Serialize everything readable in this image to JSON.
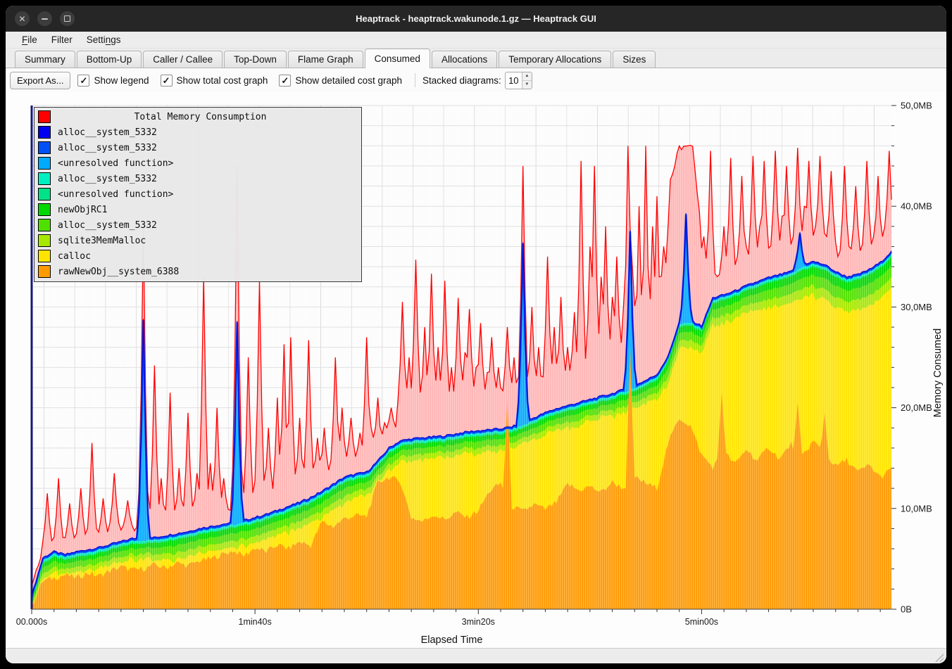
{
  "window": {
    "title": "Heaptrack - heaptrack.wakunode.1.gz — Heaptrack GUI"
  },
  "menubar": {
    "items": [
      {
        "label": "File",
        "mnemonic": "F"
      },
      {
        "label": "Filter",
        "mnemonic": ""
      },
      {
        "label": "Settings",
        "mnemonic": "n"
      }
    ]
  },
  "tabs": {
    "items": [
      "Summary",
      "Bottom-Up",
      "Caller / Callee",
      "Top-Down",
      "Flame Graph",
      "Consumed",
      "Allocations",
      "Temporary Allocations",
      "Sizes"
    ],
    "active": "Consumed"
  },
  "toolbar": {
    "export_label": "Export As...",
    "checkboxes": [
      {
        "label": "Show legend",
        "checked": true
      },
      {
        "label": "Show total cost graph",
        "checked": true
      },
      {
        "label": "Show detailed cost graph",
        "checked": true
      }
    ],
    "stacked_label": "Stacked diagrams:",
    "stacked_value": "10",
    "check_glyph": "✓",
    "spin_up_glyph": "▲",
    "spin_down_glyph": "▼"
  },
  "chart_data": {
    "type": "area",
    "xlabel": "Elapsed Time",
    "ylabel": "Memory Consumed",
    "t_max": 385,
    "y_max": 50,
    "x_ticks": [
      {
        "t": 0,
        "label": "00.000s"
      },
      {
        "t": 100,
        "label": "1min40s"
      },
      {
        "t": 200,
        "label": "3min20s"
      },
      {
        "t": 300,
        "label": "5min00s"
      }
    ],
    "y_ticks": [
      {
        "mb": 0,
        "label": "0B"
      },
      {
        "mb": 10,
        "label": "10,0MB"
      },
      {
        "mb": 20,
        "label": "20,0MB"
      },
      {
        "mb": 30,
        "label": "30,0MB"
      },
      {
        "mb": 40,
        "label": "40,0MB"
      },
      {
        "mb": 50,
        "label": "50,0MB"
      }
    ],
    "legend": [
      {
        "label": "Total Memory Consumption",
        "color": "#ff0000"
      },
      {
        "label": "alloc__system_5332",
        "color": "#0000f0"
      },
      {
        "label": "alloc__system_5332",
        "color": "#0051f5"
      },
      {
        "label": "<unresolved function>",
        "color": "#00aaff"
      },
      {
        "label": "alloc__system_5332",
        "color": "#00efc1"
      },
      {
        "label": "<unresolved function>",
        "color": "#00e287"
      },
      {
        "label": "newObjRC1",
        "color": "#00d900"
      },
      {
        "label": "alloc__system_5332",
        "color": "#50e000"
      },
      {
        "label": "sqlite3MemMalloc",
        "color": "#a7e800"
      },
      {
        "label": "calloc",
        "color": "#ffe400"
      },
      {
        "label": "rawNewObj__system_6388",
        "color": "#ff9a02"
      }
    ],
    "colors": {
      "red_fill": "#ffb5b5",
      "blue_line": "#0b46f2",
      "dark_blue_line": "#0000d6",
      "grid": "#dcdcdc",
      "axis_spine_left": "#16167c",
      "axis_spine_bottom": "#444444",
      "tick": "#333333",
      "plot_bg": "#fcfcfc"
    },
    "sample_step_s": 5,
    "series": {
      "stack_top_blue": [
        1.2,
        5,
        5.6,
        5.3,
        5.6,
        5.8,
        6,
        6.3,
        6.6,
        6.9,
        7,
        7,
        7.2,
        7.4,
        7.6,
        7.9,
        8.1,
        8.3,
        8.5,
        8.7,
        9,
        9.3,
        9.7,
        10.1,
        10.5,
        11,
        11.6,
        12.3,
        13,
        13.3,
        13.5,
        14.6,
        15.9,
        16.6,
        16.8,
        16.9,
        17,
        17.1,
        17.3,
        17.5,
        17.6,
        17.7,
        17.8,
        18,
        18.4,
        18.9,
        19.4,
        19.8,
        20.1,
        20.4,
        20.7,
        21,
        21.3,
        21.7,
        22.1,
        22.6,
        23.2,
        25,
        28.4,
        28.6,
        28,
        30.8,
        31.1,
        31.5,
        32,
        32.4,
        32.8,
        33.1,
        33.4,
        34.1,
        34.4,
        34.1,
        33.4,
        32.9,
        33.1,
        33.6,
        34.3,
        35.4
      ],
      "orange": [
        0.3,
        2.8,
        3.1,
        3.4,
        3.1,
        3.6,
        3.3,
        3.8,
        4.2,
        3.9,
        4,
        4.4,
        4.1,
        4.6,
        4.3,
        4.8,
        5,
        5.4,
        5.8,
        5.3,
        6.1,
        5.7,
        6.4,
        6,
        6.7,
        6.3,
        8.7,
        8.2,
        9,
        9.3,
        9.2,
        12.6,
        13.1,
        12.7,
        9.1,
        8.7,
        9.4,
        8.9,
        9.6,
        9.1,
        9.8,
        11.7,
        12.5,
        10.2,
        9.7,
        10.4,
        9.9,
        10.6,
        12.4,
        11.8,
        12.2,
        11.6,
        12.6,
        12,
        13.1,
        12.5,
        12,
        16.5,
        19,
        18.2,
        15.3,
        14.1,
        15.6,
        14.4,
        15.9,
        14.7,
        16.1,
        14.9,
        16.4,
        15.2,
        16.7,
        15.5,
        14.2,
        14.8,
        13.6,
        14.3,
        13.1,
        13.9
      ]
    },
    "green_band_mb": [
      [
        0,
        1.7
      ],
      [
        55,
        1.7
      ],
      [
        60,
        2.1
      ],
      [
        145,
        2.1
      ],
      [
        155,
        1.8
      ],
      [
        275,
        1.8
      ],
      [
        285,
        2.3
      ],
      [
        325,
        2.4
      ],
      [
        340,
        2.9
      ],
      [
        385,
        3.3
      ]
    ],
    "red_extra_mb": [
      [
        0,
        0.8
      ],
      [
        160,
        1.0
      ],
      [
        167,
        2.4
      ],
      [
        214,
        2.4
      ],
      [
        222,
        1.5
      ],
      [
        280,
        1.5
      ],
      [
        283,
        6
      ],
      [
        286,
        16.5
      ],
      [
        290,
        17.2
      ],
      [
        296,
        17
      ],
      [
        299,
        11
      ],
      [
        302,
        1.2
      ],
      [
        385,
        1.2
      ]
    ],
    "band_fractions": {
      "sqlite": 0.34,
      "bright_green": 0.72
    },
    "thin_strips_mb": {
      "spring": 0.14,
      "turquoise": 0.14,
      "light_blue": 0.16
    },
    "spikes": {
      "red": [
        [
          7,
          11.5
        ],
        [
          12,
          13
        ],
        [
          17,
          10.5
        ],
        [
          22,
          12
        ],
        [
          27,
          16.5
        ],
        [
          32,
          11
        ],
        [
          37,
          13.5
        ],
        [
          43,
          10.8
        ],
        [
          50,
          38.2
        ],
        [
          55,
          24.2
        ],
        [
          58,
          13
        ],
        [
          62,
          21.5
        ],
        [
          66,
          14
        ],
        [
          70,
          19.5
        ],
        [
          74,
          13.5
        ],
        [
          77,
          33
        ],
        [
          80,
          14.5
        ],
        [
          83,
          20
        ],
        [
          86,
          13
        ],
        [
          92,
          44
        ],
        [
          97,
          25
        ],
        [
          102,
          32.6
        ],
        [
          106,
          18
        ],
        [
          110,
          21
        ],
        [
          113,
          26.3
        ],
        [
          116,
          27
        ],
        [
          120,
          19
        ],
        [
          124,
          26.7
        ],
        [
          128,
          17
        ],
        [
          131,
          18
        ],
        [
          136,
          25
        ],
        [
          139,
          20
        ],
        [
          143,
          19
        ],
        [
          147,
          17.5
        ],
        [
          150,
          27
        ],
        [
          152,
          18
        ],
        [
          155,
          21
        ],
        [
          158,
          18.5
        ],
        [
          161,
          20
        ],
        [
          166,
          30.5
        ],
        [
          169,
          25
        ],
        [
          172,
          34.7
        ],
        [
          176,
          28
        ],
        [
          179,
          33.3
        ],
        [
          182,
          26
        ],
        [
          185,
          32.6
        ],
        [
          188,
          24
        ],
        [
          191,
          30.9
        ],
        [
          194,
          25.5
        ],
        [
          196,
          29.8
        ],
        [
          199,
          24
        ],
        [
          201,
          28.4
        ],
        [
          204,
          23.5
        ],
        [
          206,
          27
        ],
        [
          209,
          24
        ],
        [
          213,
          28
        ],
        [
          216,
          25
        ],
        [
          220,
          44
        ],
        [
          224,
          30
        ],
        [
          227,
          26
        ],
        [
          231,
          35
        ],
        [
          234,
          28
        ],
        [
          237,
          31
        ],
        [
          240,
          26
        ],
        [
          243,
          29.5
        ],
        [
          246,
          44.5
        ],
        [
          250,
          36
        ],
        [
          252,
          44
        ],
        [
          255,
          33
        ],
        [
          257,
          38
        ],
        [
          260,
          31
        ],
        [
          262,
          35
        ],
        [
          265,
          30
        ],
        [
          267,
          46
        ],
        [
          269,
          34
        ],
        [
          272,
          40
        ],
        [
          275,
          46
        ],
        [
          278,
          38
        ],
        [
          280,
          41
        ],
        [
          283,
          36
        ],
        [
          301,
          37
        ],
        [
          304,
          45.5
        ],
        [
          307,
          33
        ],
        [
          310,
          38
        ],
        [
          313,
          44.8
        ],
        [
          316,
          35
        ],
        [
          318,
          43
        ],
        [
          320,
          36
        ],
        [
          323,
          45
        ],
        [
          326,
          38
        ],
        [
          328,
          44.5
        ],
        [
          331,
          36
        ],
        [
          333,
          45.5
        ],
        [
          336,
          39
        ],
        [
          338,
          44
        ],
        [
          341,
          37
        ],
        [
          343,
          45.8
        ],
        [
          346,
          40
        ],
        [
          348,
          44.5
        ],
        [
          351,
          38
        ],
        [
          353,
          45
        ],
        [
          356,
          37
        ],
        [
          358,
          43.5
        ],
        [
          361,
          35
        ],
        [
          364,
          44
        ],
        [
          366,
          36
        ],
        [
          369,
          42
        ],
        [
          371,
          34
        ],
        [
          374,
          44.5
        ],
        [
          377,
          37
        ],
        [
          379,
          43
        ],
        [
          382,
          38
        ],
        [
          384,
          45.5
        ]
      ],
      "blue": [
        [
          50,
          28.7
        ],
        [
          92,
          28.5
        ],
        [
          220,
          36.3
        ],
        [
          268,
          37.5
        ],
        [
          293,
          39.2
        ],
        [
          344,
          37.3
        ]
      ],
      "orange": [
        [
          213,
          20.8
        ],
        [
          268,
          26
        ],
        [
          309,
          21.5
        ],
        [
          343,
          20.5
        ],
        [
          355,
          19.5
        ]
      ]
    }
  }
}
